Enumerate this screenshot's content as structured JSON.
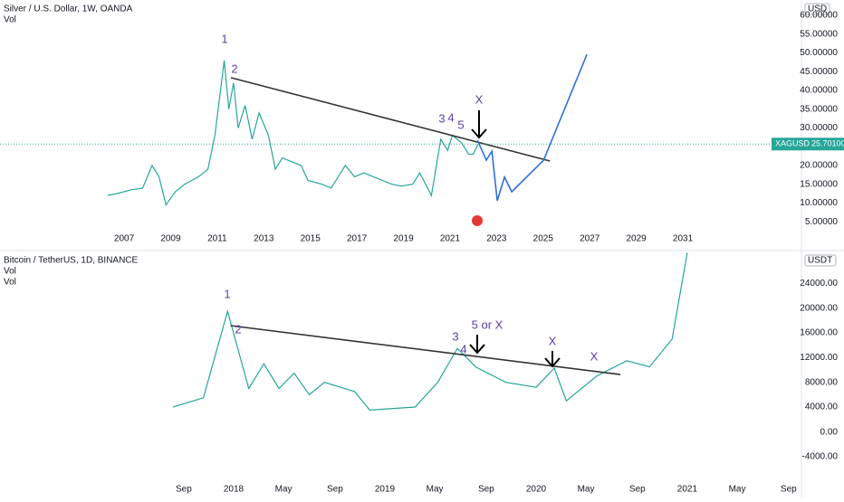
{
  "chart_data": [
    {
      "type": "line",
      "title": "Silver / U.S. Dollar, 1W, OANDA",
      "indicators": [
        "Vol"
      ],
      "currency": "USD",
      "grid": false,
      "xlim": [
        2001.67,
        2035.9
      ],
      "ylim": [
        1.9,
        62.9
      ],
      "xticks": [
        2007,
        2009,
        2011,
        2013,
        2015,
        2017,
        2019,
        2021,
        2023,
        2025,
        2027,
        2029,
        2031
      ],
      "yticks": [
        {
          "value": 5,
          "label": "5.00000"
        },
        {
          "value": 10,
          "label": "10.00000"
        },
        {
          "value": 15,
          "label": "15.00000"
        },
        {
          "value": 20,
          "label": "20.00000"
        },
        {
          "value": 25,
          "label": "25.00000"
        },
        {
          "value": 30,
          "label": "30.00000"
        },
        {
          "value": 35,
          "label": "35.00000"
        },
        {
          "value": 40,
          "label": "40.00000"
        },
        {
          "value": 45,
          "label": "45.00000"
        },
        {
          "value": 50,
          "label": "50.00000"
        },
        {
          "value": 55,
          "label": "55.00000"
        },
        {
          "value": 60,
          "label": "60.00000"
        }
      ],
      "series": [
        {
          "color": "#26a69a",
          "x": [
            2006.3,
            2006.7,
            2007.3,
            2007.8,
            2008.2,
            2008.5,
            2008.8,
            2009.2,
            2009.6,
            2010.2,
            2010.6,
            2010.9,
            2011.3,
            2011.5,
            2011.7,
            2011.9,
            2012.2,
            2012.5,
            2012.8,
            2013.2,
            2013.5,
            2013.8,
            2014.2,
            2014.6,
            2014.9,
            2015.5,
            2015.9,
            2016.5,
            2016.9,
            2017.3,
            2017.9,
            2018.5,
            2018.9,
            2019.4,
            2019.7,
            2020.2,
            2020.6,
            2020.9,
            2021.1,
            2021.5,
            2021.8,
            2022.0,
            2022.2
          ],
          "values": [
            12,
            12.5,
            13.5,
            14,
            20,
            17,
            9.5,
            13,
            15,
            17,
            19,
            28,
            48,
            35,
            42,
            30,
            36,
            27,
            34,
            28,
            19,
            22,
            21,
            20,
            16,
            15,
            14,
            20,
            17,
            18,
            16.5,
            15,
            14.5,
            15,
            18,
            12,
            27,
            24,
            28,
            26,
            23,
            23,
            25.7
          ]
        },
        {
          "color": "#333333",
          "x": [
            2011.59,
            2025.29
          ],
          "values": [
            43.4,
            21.2
          ]
        },
        {
          "color": "#2f6fdc",
          "x": [
            2022.18,
            2022.56,
            2022.8,
            2023.03,
            2023.34,
            2023.65,
            2025.02,
            2026.88
          ],
          "values": [
            26.7,
            21.4,
            23.8,
            10.6,
            16.9,
            13.0,
            21.4,
            49.6
          ]
        }
      ],
      "last_price": {
        "symbol": "XAGUSD",
        "value": 25.701,
        "label": "25.70100"
      },
      "annotations": [
        "1",
        "2",
        "3",
        "4",
        "5",
        "X"
      ]
    },
    {
      "type": "line",
      "title": "Bitcoin / TetherUS, 1D, BINANCE",
      "indicators": [
        "Vol",
        "Vol"
      ],
      "currency": "USDT",
      "grid": false,
      "xlim": [
        2016.455,
        2021.725
      ],
      "ylim": [
        1070,
        29200
      ],
      "y2lim": [
        -7700,
        1185
      ],
      "xticks": [
        {
          "value": 2017.67,
          "label": "Sep"
        },
        2018,
        {
          "value": 2018.33,
          "label": "May"
        },
        {
          "value": 2018.67,
          "label": "Sep"
        },
        2019,
        {
          "value": 2019.33,
          "label": "May"
        },
        {
          "value": 2019.67,
          "label": "Sep"
        },
        2020,
        {
          "value": 2020.33,
          "label": "May"
        },
        {
          "value": 2020.67,
          "label": "Sep"
        },
        2021,
        {
          "value": 2021.33,
          "label": "May"
        },
        {
          "value": 2021.67,
          "label": "Sep"
        }
      ],
      "yticks": [
        {
          "value": 4000,
          "label": "4000.00"
        },
        {
          "value": 8000,
          "label": "8000.00"
        },
        {
          "value": 12000,
          "label": "12000.00"
        },
        {
          "value": 16000,
          "label": "16000.00"
        },
        {
          "value": 20000,
          "label": "20000.00"
        },
        {
          "value": 24000,
          "label": "24000.00"
        }
      ],
      "y2ticks": [
        {
          "value": 0,
          "label": "0.00"
        },
        {
          "value": -4000,
          "label": "-4000.00"
        }
      ],
      "series": [
        {
          "color": "#26a69a",
          "x": [
            2017.6,
            2017.8,
            2017.96,
            2018.1,
            2018.2,
            2018.3,
            2018.4,
            2018.5,
            2018.6,
            2018.8,
            2018.9,
            2019.2,
            2019.35,
            2019.48,
            2019.6,
            2019.8,
            2020.0,
            2020.12,
            2020.2,
            2020.4,
            2020.6,
            2020.75,
            2020.9,
            2021.0
          ],
          "values": [
            4000,
            5500,
            19500,
            7000,
            11000,
            7000,
            9500,
            6000,
            8000,
            6500,
            3500,
            4000,
            8000,
            13500,
            10500,
            8000,
            7200,
            10300,
            5000,
            9000,
            11500,
            10500,
            15000,
            29000
          ]
        },
        {
          "color": "#333333",
          "x": [
            2017.98,
            2020.557
          ],
          "values": [
            17186,
            9260
          ]
        }
      ],
      "annotations": [
        "1",
        "2",
        "3",
        "4",
        "5  or  X",
        "X",
        "X"
      ]
    }
  ]
}
